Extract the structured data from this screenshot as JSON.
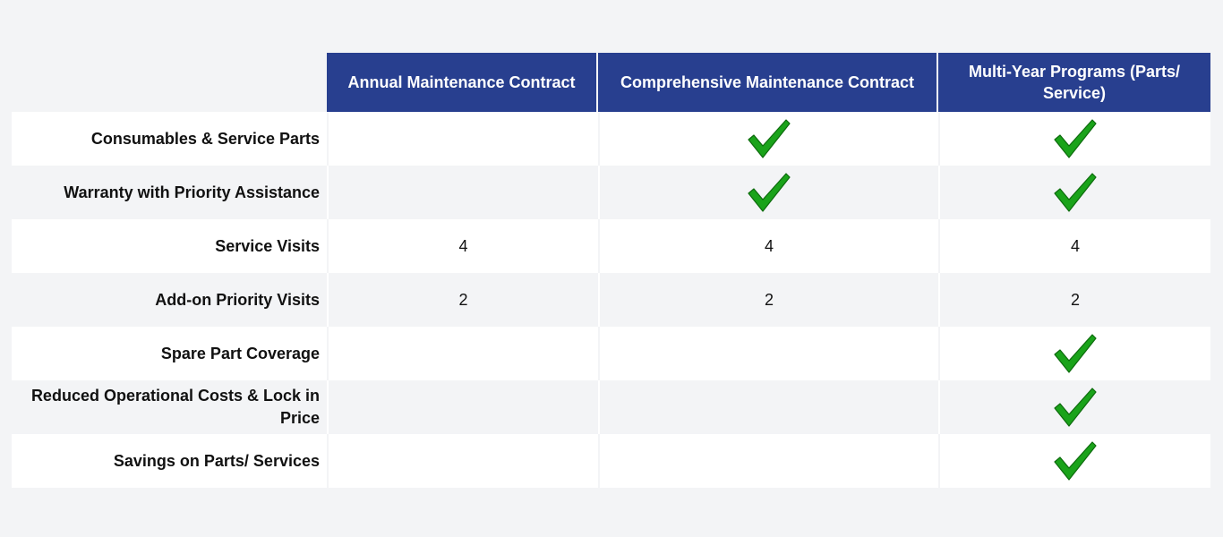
{
  "columns": [
    {
      "label": "Annual Maintenance Contract"
    },
    {
      "label": "Comprehensive Maintenance Contract"
    },
    {
      "label": "Multi-Year Programs (Parts/ Service)"
    }
  ],
  "check_color": "#1aa31a",
  "rows": [
    {
      "feature": "Consumables & Service Parts",
      "cells": [
        {
          "type": "empty",
          "text": ""
        },
        {
          "type": "check",
          "text": ""
        },
        {
          "type": "check",
          "text": ""
        }
      ]
    },
    {
      "feature": "Warranty with Priority Assistance",
      "cells": [
        {
          "type": "empty",
          "text": ""
        },
        {
          "type": "check",
          "text": ""
        },
        {
          "type": "check",
          "text": ""
        }
      ]
    },
    {
      "feature": "Service Visits",
      "cells": [
        {
          "type": "text",
          "text": "4"
        },
        {
          "type": "text",
          "text": "4"
        },
        {
          "type": "text",
          "text": "4"
        }
      ]
    },
    {
      "feature": "Add-on Priority Visits",
      "cells": [
        {
          "type": "text",
          "text": "2"
        },
        {
          "type": "text",
          "text": "2"
        },
        {
          "type": "text",
          "text": "2"
        }
      ]
    },
    {
      "feature": "Spare Part Coverage",
      "cells": [
        {
          "type": "empty",
          "text": ""
        },
        {
          "type": "empty",
          "text": ""
        },
        {
          "type": "check",
          "text": ""
        }
      ]
    },
    {
      "feature": "Reduced Operational Costs & Lock in Price",
      "cells": [
        {
          "type": "empty",
          "text": ""
        },
        {
          "type": "empty",
          "text": ""
        },
        {
          "type": "check",
          "text": ""
        }
      ]
    },
    {
      "feature": "Savings on Parts/ Services",
      "cells": [
        {
          "type": "empty",
          "text": ""
        },
        {
          "type": "empty",
          "text": ""
        },
        {
          "type": "check",
          "text": ""
        }
      ]
    }
  ]
}
